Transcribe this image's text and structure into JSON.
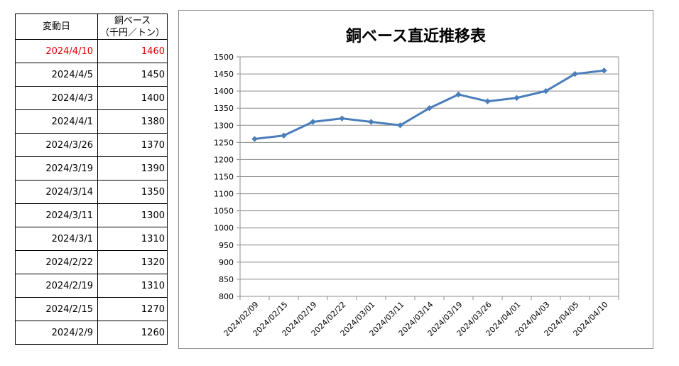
{
  "table": {
    "header": {
      "date": "変動日",
      "value_line1": "銅ベース",
      "value_line2": "（千円／トン）"
    },
    "rows": [
      {
        "date": "2024/4/10",
        "value": "1460",
        "highlight": true
      },
      {
        "date": "2024/4/5",
        "value": "1450"
      },
      {
        "date": "2024/4/3",
        "value": "1400"
      },
      {
        "date": "2024/4/1",
        "value": "1380"
      },
      {
        "date": "2024/3/26",
        "value": "1370"
      },
      {
        "date": "2024/3/19",
        "value": "1390"
      },
      {
        "date": "2024/3/14",
        "value": "1350"
      },
      {
        "date": "2024/3/11",
        "value": "1300"
      },
      {
        "date": "2024/3/1",
        "value": "1310"
      },
      {
        "date": "2024/2/22",
        "value": "1320"
      },
      {
        "date": "2024/2/19",
        "value": "1310"
      },
      {
        "date": "2024/2/15",
        "value": "1270"
      },
      {
        "date": "2024/2/9",
        "value": "1260"
      }
    ],
    "highlight_color": "#e00000"
  },
  "chart_data": {
    "type": "line",
    "title": "銅ベース直近推移表",
    "xlabel": "",
    "ylabel": "",
    "categories": [
      "2024/02/09",
      "2024/02/15",
      "2024/02/19",
      "2024/02/22",
      "2024/03/01",
      "2024/03/11",
      "2024/03/14",
      "2024/03/19",
      "2024/03/26",
      "2024/04/01",
      "2024/04/03",
      "2024/04/05",
      "2024/04/10"
    ],
    "values": [
      1260,
      1270,
      1310,
      1320,
      1310,
      1300,
      1350,
      1390,
      1370,
      1380,
      1400,
      1450,
      1460
    ],
    "ylim": [
      800,
      1500
    ],
    "yticks": [
      800,
      850,
      900,
      950,
      1000,
      1050,
      1100,
      1150,
      1200,
      1250,
      1300,
      1350,
      1400,
      1450,
      1500
    ],
    "grid": true,
    "legend": "none",
    "line_color": "#4a7ebb",
    "marker": "diamond"
  }
}
